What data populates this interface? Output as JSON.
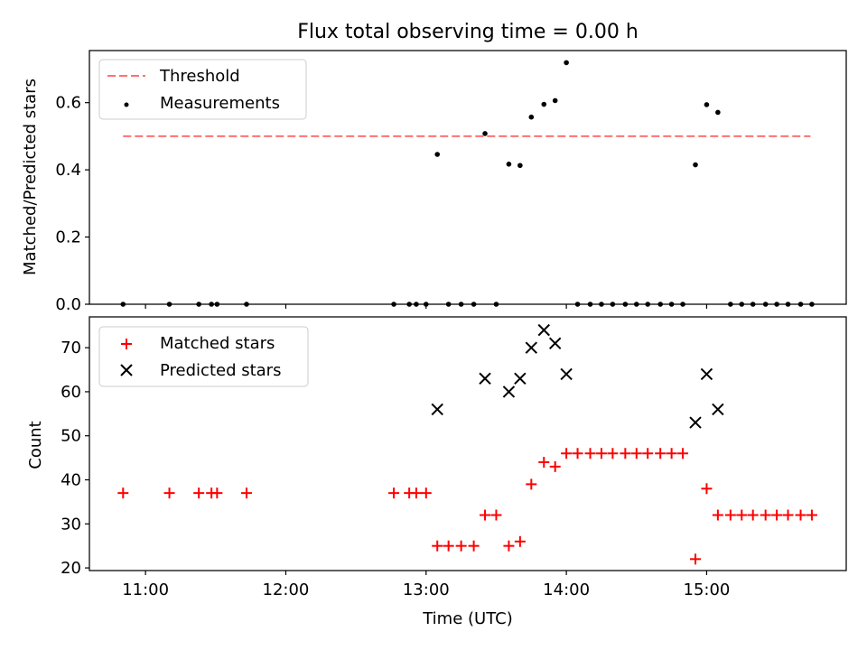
{
  "title": "Flux total observing time = 0.00 h",
  "x_axis": {
    "label": "Time (UTC)",
    "ticks": [
      {
        "label": "11:00",
        "hours": 11.0
      },
      {
        "label": "12:00",
        "hours": 12.0
      },
      {
        "label": "13:00",
        "hours": 13.0
      },
      {
        "label": "14:00",
        "hours": 14.0
      },
      {
        "label": "15:00",
        "hours": 15.0
      }
    ]
  },
  "colors": {
    "threshold": "#ff7070",
    "measurements": "#000000",
    "matched": "#ff0000",
    "predicted": "#000000"
  },
  "chart_data": [
    {
      "type": "scatter",
      "ylabel": "Matched/Predicted stars",
      "xlim": [
        10.6,
        15.995
      ],
      "ylim": [
        0,
        0.755
      ],
      "yticks": [
        {
          "label": "0.0",
          "value": 0.0
        },
        {
          "label": "0.2",
          "value": 0.2
        },
        {
          "label": "0.4",
          "value": 0.4
        },
        {
          "label": "0.6",
          "value": 0.6
        }
      ],
      "legend_position": "top-left",
      "legend": [
        {
          "name": "Threshold",
          "marker": "dash"
        },
        {
          "name": "Measurements",
          "marker": "dot"
        }
      ],
      "threshold": {
        "name": "Threshold",
        "value": 0.5,
        "x_range": [
          10.84,
          15.74
        ]
      },
      "series": [
        {
          "name": "Measurements",
          "points": [
            [
              10.84,
              0.0
            ],
            [
              11.17,
              0.0
            ],
            [
              11.38,
              0.0
            ],
            [
              11.47,
              0.0
            ],
            [
              11.51,
              0.0
            ],
            [
              11.72,
              0.0
            ],
            [
              12.77,
              0.0
            ],
            [
              12.88,
              0.0
            ],
            [
              12.93,
              0.0
            ],
            [
              13.0,
              0.0
            ],
            [
              13.08,
              0.446
            ],
            [
              13.16,
              0.0
            ],
            [
              13.25,
              0.0
            ],
            [
              13.34,
              0.0
            ],
            [
              13.42,
              0.508
            ],
            [
              13.5,
              0.0
            ],
            [
              13.59,
              0.417
            ],
            [
              13.67,
              0.413
            ],
            [
              13.75,
              0.557
            ],
            [
              13.84,
              0.595
            ],
            [
              13.92,
              0.606
            ],
            [
              14.0,
              0.719
            ],
            [
              14.08,
              0.0
            ],
            [
              14.17,
              0.0
            ],
            [
              14.25,
              0.0
            ],
            [
              14.33,
              0.0
            ],
            [
              14.42,
              0.0
            ],
            [
              14.5,
              0.0
            ],
            [
              14.58,
              0.0
            ],
            [
              14.67,
              0.0
            ],
            [
              14.75,
              0.0
            ],
            [
              14.83,
              0.0
            ],
            [
              14.92,
              0.415
            ],
            [
              15.0,
              0.594
            ],
            [
              15.08,
              0.571
            ],
            [
              15.17,
              0.0
            ],
            [
              15.25,
              0.0
            ],
            [
              15.33,
              0.0
            ],
            [
              15.42,
              0.0
            ],
            [
              15.5,
              0.0
            ],
            [
              15.58,
              0.0
            ],
            [
              15.67,
              0.0
            ],
            [
              15.75,
              0.0
            ]
          ]
        }
      ]
    },
    {
      "type": "scatter",
      "ylabel": "Count",
      "xlim": [
        10.6,
        15.995
      ],
      "ylim": [
        19.4,
        77.0
      ],
      "yticks": [
        {
          "label": "20",
          "value": 20
        },
        {
          "label": "30",
          "value": 30
        },
        {
          "label": "40",
          "value": 40
        },
        {
          "label": "50",
          "value": 50
        },
        {
          "label": "60",
          "value": 60
        },
        {
          "label": "70",
          "value": 70
        }
      ],
      "legend_position": "top-left",
      "legend": [
        {
          "name": "Matched stars",
          "marker": "plus"
        },
        {
          "name": "Predicted stars",
          "marker": "x"
        }
      ],
      "series": [
        {
          "name": "Matched stars",
          "points": [
            [
              10.84,
              37
            ],
            [
              11.17,
              37
            ],
            [
              11.38,
              37
            ],
            [
              11.47,
              37
            ],
            [
              11.51,
              37
            ],
            [
              11.72,
              37
            ],
            [
              12.77,
              37
            ],
            [
              12.88,
              37
            ],
            [
              12.93,
              37
            ],
            [
              13.0,
              37
            ],
            [
              13.08,
              25
            ],
            [
              13.16,
              25
            ],
            [
              13.25,
              25
            ],
            [
              13.34,
              25
            ],
            [
              13.42,
              32
            ],
            [
              13.5,
              32
            ],
            [
              13.59,
              25
            ],
            [
              13.67,
              26
            ],
            [
              13.75,
              39
            ],
            [
              13.84,
              44
            ],
            [
              13.92,
              43
            ],
            [
              14.0,
              46
            ],
            [
              14.08,
              46
            ],
            [
              14.17,
              46
            ],
            [
              14.25,
              46
            ],
            [
              14.33,
              46
            ],
            [
              14.42,
              46
            ],
            [
              14.5,
              46
            ],
            [
              14.58,
              46
            ],
            [
              14.67,
              46
            ],
            [
              14.75,
              46
            ],
            [
              14.83,
              46
            ],
            [
              14.92,
              22
            ],
            [
              15.0,
              38
            ],
            [
              15.08,
              32
            ],
            [
              15.17,
              32
            ],
            [
              15.25,
              32
            ],
            [
              15.33,
              32
            ],
            [
              15.42,
              32
            ],
            [
              15.5,
              32
            ],
            [
              15.58,
              32
            ],
            [
              15.67,
              32
            ],
            [
              15.75,
              32
            ]
          ]
        },
        {
          "name": "Predicted stars",
          "points": [
            [
              13.08,
              56
            ],
            [
              13.42,
              63
            ],
            [
              13.59,
              60
            ],
            [
              13.67,
              63
            ],
            [
              13.75,
              70
            ],
            [
              13.84,
              74
            ],
            [
              13.92,
              71
            ],
            [
              14.0,
              64
            ],
            [
              14.92,
              53
            ],
            [
              15.0,
              64
            ],
            [
              15.08,
              56
            ]
          ]
        }
      ]
    }
  ]
}
